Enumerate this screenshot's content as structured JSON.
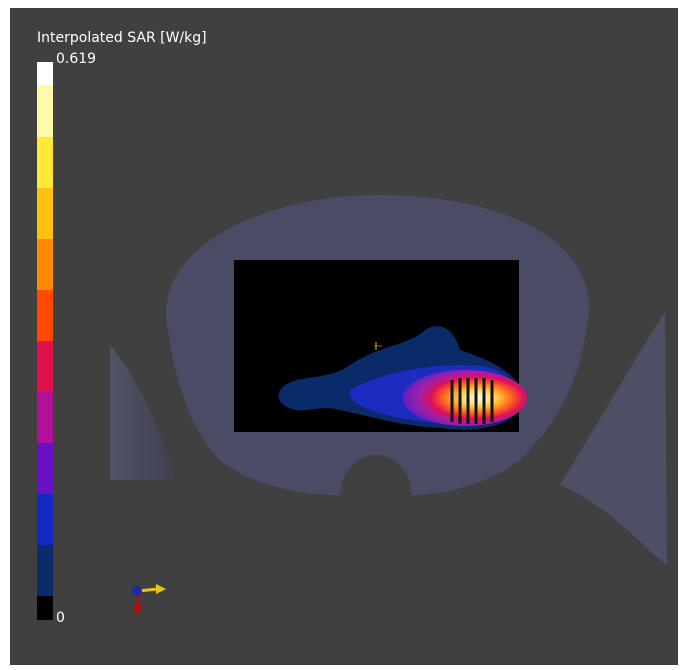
{
  "colorbar": {
    "title": "Interpolated SAR [W/kg]",
    "max": 0.619,
    "min": 0
  }
}
